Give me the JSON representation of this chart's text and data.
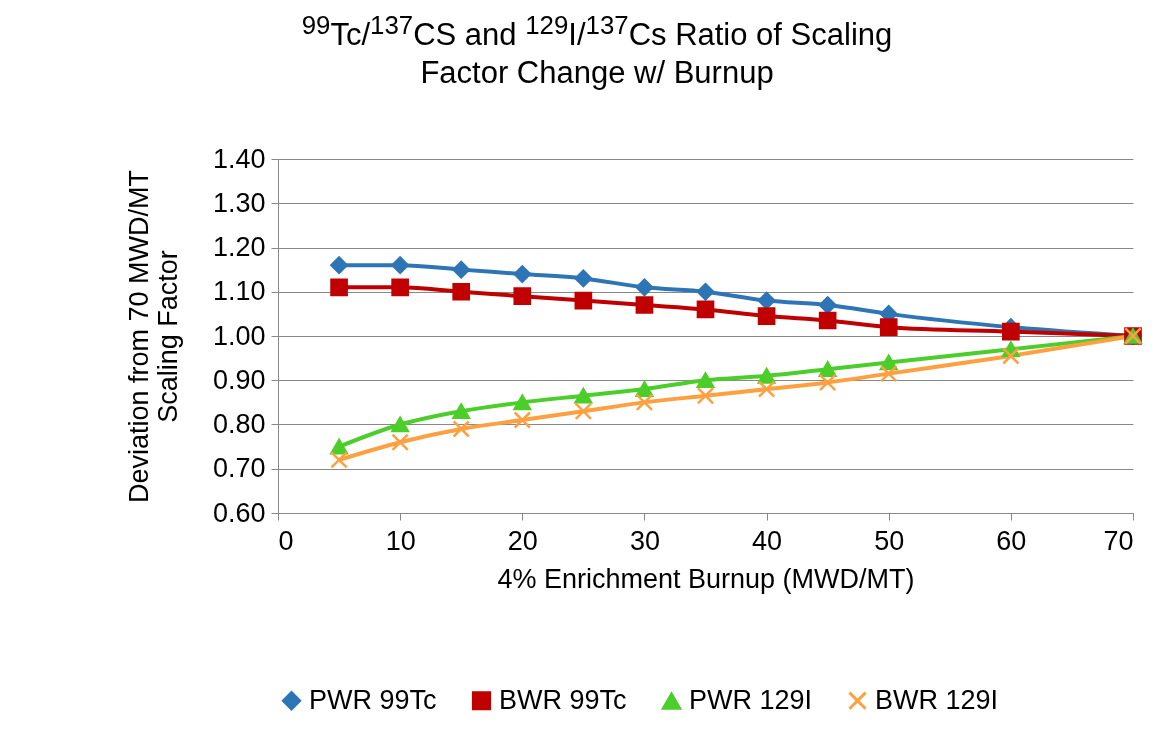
{
  "chart_data": {
    "type": "line",
    "title": "$^{99}$Tc/$^{137}$CS and $^{129}$I/$^{137}$Cs Ratio of Scaling Factor Change w/ Burnup",
    "xlabel": "4% Enrichment Burnup (MWD/MT)",
    "ylabel": "Deviation from 70 MWD/MT Scaling Factor",
    "x": [
      5,
      10,
      15,
      20,
      25,
      30,
      35,
      40,
      45,
      50,
      60,
      70
    ],
    "series": [
      {
        "name": "PWR 99Tc",
        "color": "#2e75b6",
        "marker": "diamond",
        "values": [
          1.16,
          1.16,
          1.15,
          1.14,
          1.13,
          1.11,
          1.1,
          1.08,
          1.07,
          1.05,
          1.02,
          1.0
        ]
      },
      {
        "name": "BWR 99Tc",
        "color": "#c00000",
        "marker": "square",
        "values": [
          1.11,
          1.11,
          1.1,
          1.09,
          1.08,
          1.07,
          1.06,
          1.045,
          1.035,
          1.02,
          1.01,
          1.0
        ]
      },
      {
        "name": "PWR 129I",
        "color": "#4cce2a",
        "marker": "triangle",
        "values": [
          0.75,
          0.8,
          0.83,
          0.85,
          0.865,
          0.88,
          0.9,
          0.91,
          0.925,
          0.94,
          0.97,
          1.0
        ]
      },
      {
        "name": "BWR 129I",
        "color": "#ffa040",
        "marker": "cross",
        "values": [
          0.72,
          0.76,
          0.79,
          0.81,
          0.83,
          0.85,
          0.865,
          0.88,
          0.895,
          0.915,
          0.955,
          1.0
        ]
      }
    ],
    "xlim": [
      0,
      70
    ],
    "xticks": [
      0,
      10,
      20,
      30,
      40,
      50,
      60,
      70
    ],
    "ylim": [
      0.6,
      1.4
    ],
    "yticks": [
      {
        "value": 0.6,
        "label": "0.60"
      },
      {
        "value": 0.7,
        "label": "0.70"
      },
      {
        "value": 0.8,
        "label": "0.80"
      },
      {
        "value": 0.9,
        "label": "0.90"
      },
      {
        "value": 1.0,
        "label": "1.00"
      },
      {
        "value": 1.1,
        "label": "1.10"
      },
      {
        "value": 1.2,
        "label": "1.20"
      },
      {
        "value": 1.3,
        "label": "1.30"
      },
      {
        "value": 1.4,
        "label": "1.40"
      }
    ],
    "grid": "y",
    "legend": "bottom",
    "line_style": "solid"
  }
}
